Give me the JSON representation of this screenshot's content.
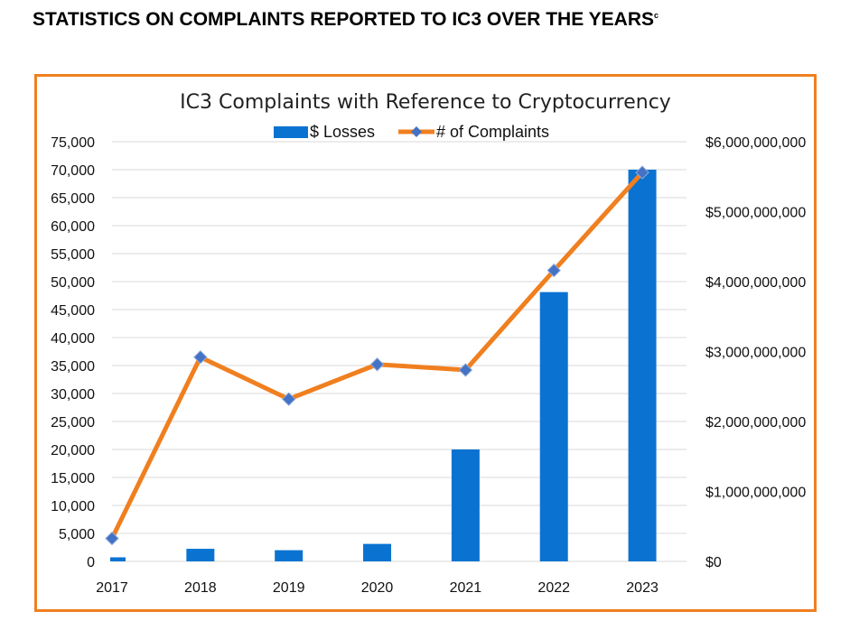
{
  "header": {
    "title": "STATISTICS ON COMPLAINTS REPORTED TO IC3 OVER THE YEARS",
    "footnote": "c"
  },
  "chart_data": {
    "type": "bar+line",
    "title": "IC3 Complaints with Reference to Cryptocurrency",
    "categories": [
      "2017",
      "2018",
      "2019",
      "2020",
      "2021",
      "2022",
      "2023"
    ],
    "series": [
      {
        "name": "$ Losses",
        "type": "bar",
        "axis": "right",
        "color": "#0a73d2",
        "values": [
          58000000,
          180000000,
          160000000,
          250000000,
          1600000000,
          3850000000,
          5600000000
        ]
      },
      {
        "name": "# of Complaints",
        "type": "line",
        "axis": "left",
        "color": "#f07f1f",
        "marker_color": "#4472c4",
        "values": [
          4100,
          36500,
          29000,
          35200,
          34200,
          52000,
          69500
        ]
      }
    ],
    "y_left": {
      "min": 0,
      "max": 75000,
      "ticks": [
        "0",
        "5,000",
        "10,000",
        "15,000",
        "20,000",
        "25,000",
        "30,000",
        "35,000",
        "40,000",
        "45,000",
        "50,000",
        "55,000",
        "60,000",
        "65,000",
        "70,000",
        "75,000"
      ]
    },
    "y_right": {
      "min": 0,
      "max": 6000000000,
      "ticks": [
        "$0",
        "$1,000,000,000",
        "$2,000,000,000",
        "$3,000,000,000",
        "$4,000,000,000",
        "$5,000,000,000",
        "$6,000,000,000"
      ]
    },
    "grid": true,
    "legend_position": "top-center",
    "frame_color": "#f07f1f"
  }
}
